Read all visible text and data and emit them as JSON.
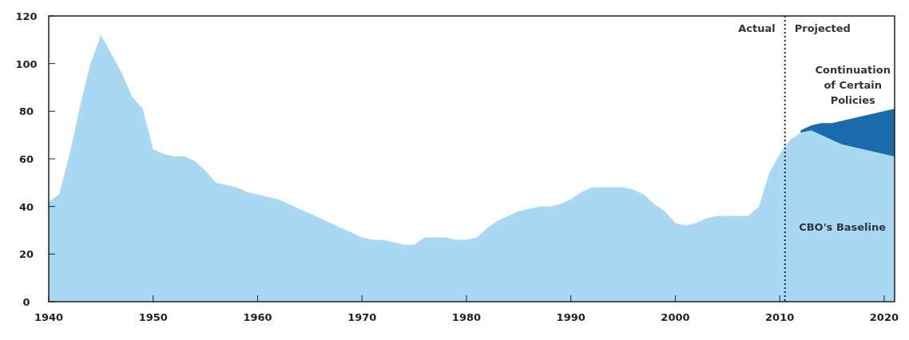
{
  "chart_data": {
    "type": "area",
    "xlim": [
      1940,
      2021
    ],
    "xticks": [
      1940,
      1950,
      1960,
      1970,
      1980,
      1990,
      2000,
      2010,
      2020
    ],
    "ylim": [
      0,
      120
    ],
    "yticks": [
      0,
      20,
      40,
      60,
      80,
      100,
      120
    ],
    "grid": false,
    "series": [
      {
        "name": "Continuation of Certain Policies",
        "color": "#1a6aad",
        "x": [
          2012,
          2013,
          2014,
          2015,
          2016,
          2017,
          2018,
          2019,
          2020,
          2021
        ],
        "values": [
          72,
          74,
          75,
          75,
          76,
          77,
          78,
          79,
          80,
          81
        ]
      },
      {
        "name": "CBO's Baseline",
        "color": "#a9d8f2",
        "x": [
          1940,
          1941,
          1942,
          1943,
          1944,
          1945,
          1946,
          1947,
          1948,
          1949,
          1950,
          1951,
          1952,
          1953,
          1954,
          1955,
          1956,
          1957,
          1958,
          1959,
          1960,
          1961,
          1962,
          1963,
          1964,
          1965,
          1966,
          1967,
          1968,
          1969,
          1970,
          1971,
          1972,
          1973,
          1974,
          1975,
          1976,
          1977,
          1978,
          1979,
          1980,
          1981,
          1982,
          1983,
          1984,
          1985,
          1986,
          1987,
          1988,
          1989,
          1990,
          1991,
          1992,
          1993,
          1994,
          1995,
          1996,
          1997,
          1998,
          1999,
          2000,
          2001,
          2002,
          2003,
          2004,
          2005,
          2006,
          2007,
          2008,
          2009,
          2010,
          2011,
          2012,
          2013,
          2014,
          2015,
          2016,
          2017,
          2018,
          2019,
          2020,
          2021
        ],
        "values": [
          42,
          45,
          62,
          82,
          100,
          112,
          104,
          96,
          86,
          81,
          64,
          62,
          61,
          61,
          59,
          55,
          50,
          49,
          48,
          46,
          45,
          44,
          43,
          41,
          39,
          37,
          35,
          33,
          31,
          29,
          27,
          26,
          26,
          25,
          24,
          24,
          27,
          27,
          27,
          26,
          26,
          27,
          31,
          34,
          36,
          38,
          39,
          40,
          40,
          41,
          43,
          46,
          48,
          48,
          48,
          48,
          47,
          45,
          41,
          38,
          33,
          32,
          33,
          35,
          36,
          36,
          36,
          36,
          40,
          54,
          62,
          68,
          71,
          72,
          70,
          68,
          66,
          65,
          64,
          63,
          62,
          61
        ]
      }
    ],
    "ref_lines": [
      {
        "axis": "x",
        "value": 2010.5,
        "line_style": "dotted",
        "color": "#1a2a3a"
      }
    ],
    "annotations": [
      "Actual",
      "Projected"
    ]
  }
}
